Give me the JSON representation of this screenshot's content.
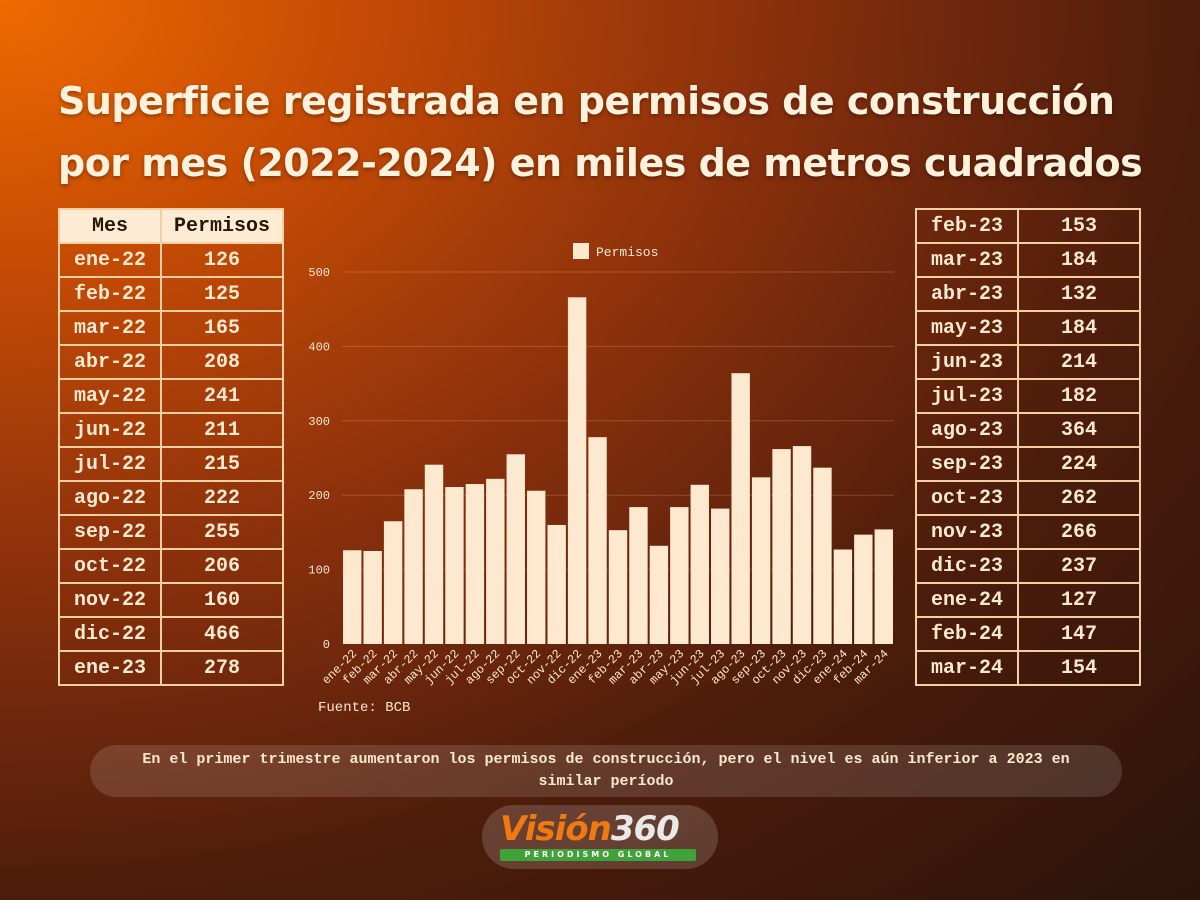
{
  "title": {
    "line1": "Superficie registrada en permisos de construcción",
    "line2": "por mes (2022-2024) en miles de metros cuadrados"
  },
  "left_table": {
    "headers": [
      "Mes",
      "Permisos"
    ],
    "rows": [
      [
        "ene-22",
        "126"
      ],
      [
        "feb-22",
        "125"
      ],
      [
        "mar-22",
        "165"
      ],
      [
        "abr-22",
        "208"
      ],
      [
        "may-22",
        "241"
      ],
      [
        "jun-22",
        "211"
      ],
      [
        "jul-22",
        "215"
      ],
      [
        "ago-22",
        "222"
      ],
      [
        "sep-22",
        "255"
      ],
      [
        "oct-22",
        "206"
      ],
      [
        "nov-22",
        "160"
      ],
      [
        "dic-22",
        "466"
      ],
      [
        "ene-23",
        "278"
      ]
    ]
  },
  "right_table": {
    "rows": [
      [
        "feb-23",
        "153"
      ],
      [
        "mar-23",
        "184"
      ],
      [
        "abr-23",
        "132"
      ],
      [
        "may-23",
        "184"
      ],
      [
        "jun-23",
        "214"
      ],
      [
        "jul-23",
        "182"
      ],
      [
        "ago-23",
        "364"
      ],
      [
        "sep-23",
        "224"
      ],
      [
        "oct-23",
        "262"
      ],
      [
        "nov-23",
        "266"
      ],
      [
        "dic-23",
        "237"
      ],
      [
        "ene-24",
        "127"
      ],
      [
        "feb-24",
        "147"
      ],
      [
        "mar-24",
        "154"
      ]
    ]
  },
  "chart_data": {
    "type": "bar",
    "title": "",
    "xlabel": "",
    "ylabel": "",
    "categories": [
      "ene-22",
      "feb-22",
      "mar-22",
      "abr-22",
      "may-22",
      "jun-22",
      "jul-22",
      "ago-22",
      "sep-22",
      "oct-22",
      "nov-22",
      "dic-22",
      "ene-23",
      "feb-23",
      "mar-23",
      "abr-23",
      "may-23",
      "jun-23",
      "jul-23",
      "ago-23",
      "sep-23",
      "oct-23",
      "nov-23",
      "dic-23",
      "ene-24",
      "feb-24",
      "mar-24"
    ],
    "series": [
      {
        "name": "Permisos",
        "values": [
          126,
          125,
          165,
          208,
          241,
          211,
          215,
          222,
          255,
          206,
          160,
          466,
          278,
          153,
          184,
          132,
          184,
          214,
          182,
          364,
          224,
          262,
          266,
          237,
          127,
          147,
          154
        ],
        "color": "#fde9cf"
      }
    ],
    "ylim": [
      0,
      500
    ],
    "yticks": [
      0,
      100,
      200,
      300,
      400,
      500
    ],
    "grid": true,
    "legend": "top-center"
  },
  "source": "Fuente: BCB",
  "note": "En el primer trimestre aumentaron los permisos de construcción, pero el nivel es aún inferior a 2023 en similar período",
  "logo": {
    "word1": "Visión",
    "word2": "360",
    "tagline": "PERIODISMO GLOBAL"
  },
  "colors": {
    "bar": "#fde9cf",
    "text": "#fde9cf",
    "table_border": "#f3cfa4",
    "logo_orange": "#f07a10",
    "logo_green": "#3fa33a"
  }
}
